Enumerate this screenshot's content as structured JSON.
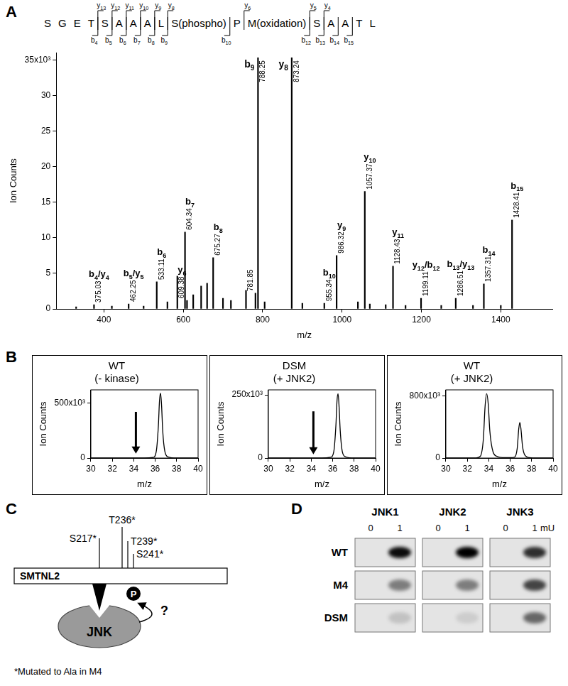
{
  "panel_labels": [
    "A",
    "B",
    "C",
    "D"
  ],
  "sequence": {
    "residues": [
      "S",
      "G",
      "E",
      "T",
      "S",
      "A",
      "A",
      "A",
      "L",
      "S(phospho)",
      "P",
      "M(oxidation)",
      "S",
      "A",
      "A",
      "T",
      "L"
    ],
    "b_ions": [
      "b4",
      "b5",
      "b6",
      "b7",
      "b8",
      "b9",
      "b10",
      "b12",
      "b13",
      "b14",
      "b15"
    ],
    "y_ions": [
      "y13",
      "y12",
      "y11",
      "y10",
      "y9",
      "y8",
      "y6",
      "y5",
      "y4"
    ]
  },
  "chart_data": [
    {
      "type": "bar",
      "x": [
        330,
        375.03,
        420,
        462.25,
        500,
        533.11,
        560,
        585,
        604.34,
        609.38,
        625,
        645,
        660,
        675.27,
        700,
        720,
        758,
        781.85,
        788.25,
        805,
        873.24,
        900,
        955.34,
        986.32,
        1040,
        1057.37,
        1070,
        1110,
        1128.43,
        1160,
        1199.11,
        1250,
        1286.51,
        1330,
        1357.31,
        1400,
        1428.41
      ],
      "values": [
        0.3,
        0.6,
        0.4,
        0.7,
        0.4,
        3.8,
        1.0,
        4.6,
        10.8,
        1.2,
        2.0,
        3.2,
        3.6,
        7.2,
        1.5,
        1.2,
        2.6,
        2.2,
        35.3,
        1.0,
        35.3,
        0.8,
        0.8,
        7.5,
        1.0,
        16.5,
        0.7,
        0.6,
        6.0,
        0.5,
        1.5,
        0.5,
        1.5,
        0.5,
        3.5,
        0.5,
        12.5
      ],
      "ion_labels": [
        null,
        "b4/y4",
        null,
        "b5/y5",
        null,
        "b6",
        null,
        null,
        "b7",
        "y6",
        null,
        null,
        null,
        "b8",
        null,
        null,
        null,
        null,
        "b9",
        null,
        "y8",
        null,
        "b10",
        "y9",
        null,
        "y10",
        null,
        null,
        "y11",
        null,
        "y12/b12",
        null,
        "b13/y13",
        null,
        "b14",
        null,
        "b15"
      ],
      "peak_labels": [
        null,
        "375.03",
        null,
        "462.25",
        null,
        "533.11",
        null,
        null,
        "604.34",
        "609.38",
        null,
        null,
        null,
        "675.27",
        null,
        null,
        null,
        "781.85",
        "788.25",
        null,
        "873.24",
        null,
        "955.34",
        "986.32",
        null,
        "1057.37",
        null,
        null,
        "1128.43",
        null,
        "1199.11",
        null,
        "1286.51",
        null,
        "1357.31",
        null,
        "1428.41"
      ],
      "xlabel": "m/z",
      "ylabel": "Ion Counts",
      "xlim": [
        280,
        1530
      ],
      "xticks": [
        400,
        600,
        800,
        1000,
        1200,
        1400
      ],
      "ylim": [
        0,
        36
      ],
      "yticks": [
        0,
        5,
        10,
        15,
        20,
        25,
        30,
        {
          "value": 35,
          "label": "35x10³"
        }
      ],
      "color": "#000000",
      "grid": false
    },
    {
      "type": "line",
      "title": [
        "WT",
        "(- kinase)"
      ],
      "x": [
        30,
        31,
        32,
        33,
        34,
        35,
        35.8,
        36.1,
        36.3,
        36.4,
        36.5,
        36.6,
        36.7,
        36.9,
        37.2,
        38,
        39,
        40
      ],
      "values": [
        0,
        0,
        0,
        0,
        0,
        0,
        5,
        60,
        300,
        520,
        590,
        470,
        250,
        60,
        10,
        0,
        0,
        0
      ],
      "xlabel": "m/z",
      "ylabel": "Ion Counts",
      "xlim": [
        30,
        40
      ],
      "xticks": [
        30,
        32,
        34,
        36,
        38,
        40
      ],
      "ylim": [
        0,
        620
      ],
      "yticks": [
        0,
        {
          "value": 500,
          "label": "500x10³"
        }
      ],
      "arrow": {
        "x": 34.2,
        "from": 420,
        "to": 40
      },
      "color": "#000000",
      "grid": false
    },
    {
      "type": "line",
      "title": [
        "DSM",
        "(+ JNK2)"
      ],
      "x": [
        30,
        31,
        32,
        33,
        34,
        35,
        35.8,
        36.1,
        36.3,
        36.4,
        36.5,
        36.6,
        36.7,
        36.9,
        37.2,
        38,
        39,
        40
      ],
      "values": [
        0,
        0,
        0,
        0,
        0,
        0,
        3,
        25,
        130,
        225,
        255,
        200,
        110,
        25,
        5,
        0,
        0,
        0
      ],
      "xlabel": "m/z",
      "ylabel": "Ion Counts",
      "xlim": [
        30,
        40
      ],
      "xticks": [
        30,
        32,
        34,
        36,
        38,
        40
      ],
      "ylim": [
        0,
        270
      ],
      "yticks": [
        0,
        {
          "value": 250,
          "label": "250x10³"
        }
      ],
      "arrow": {
        "x": 34.2,
        "from": 185,
        "to": 15
      },
      "color": "#000000",
      "grid": false
    },
    {
      "type": "line",
      "title": [
        "WT",
        "(+ JNK2)"
      ],
      "x": [
        30,
        31,
        32,
        32.8,
        33.2,
        33.5,
        33.65,
        33.8,
        33.95,
        34.1,
        34.4,
        34.8,
        35.5,
        36,
        36.4,
        36.65,
        36.8,
        36.9,
        37,
        37.15,
        37.4,
        37.8,
        38.5,
        39,
        40
      ],
      "values": [
        0,
        0,
        0,
        2,
        20,
        250,
        650,
        830,
        700,
        350,
        80,
        20,
        5,
        5,
        10,
        120,
        380,
        460,
        380,
        150,
        30,
        5,
        0,
        0,
        0
      ],
      "xlabel": "m/z",
      "ylabel": "Ion Counts",
      "xlim": [
        30,
        40
      ],
      "xticks": [
        30,
        32,
        34,
        36,
        38,
        40
      ],
      "ylim": [
        0,
        880
      ],
      "yticks": [
        0,
        {
          "value": 800,
          "label": "800x10³"
        }
      ],
      "color": "#000000",
      "grid": false
    }
  ],
  "diagram": {
    "protein": "SMTNL2",
    "sites": [
      "S217*",
      "T236*",
      "T239*",
      "S241*"
    ],
    "kinase": "JNK",
    "phospho": "P",
    "question": "?",
    "footnote": "*Mutated to Ala in M4"
  },
  "blot": {
    "columns": [
      "JNK1",
      "JNK2",
      "JNK3"
    ],
    "lanes": [
      "0",
      "1"
    ],
    "unit": "mU",
    "rows": [
      {
        "label": "WT",
        "bands": [
          [
            0,
            0.95
          ],
          [
            0,
            1.0
          ],
          [
            0,
            0.8
          ]
        ]
      },
      {
        "label": "M4",
        "bands": [
          [
            0,
            0.45
          ],
          [
            0,
            0.45
          ],
          [
            0,
            0.7
          ]
        ]
      },
      {
        "label": "DSM",
        "bands": [
          [
            0,
            0.15
          ],
          [
            0,
            0.1
          ],
          [
            0,
            0.55
          ]
        ]
      }
    ]
  }
}
